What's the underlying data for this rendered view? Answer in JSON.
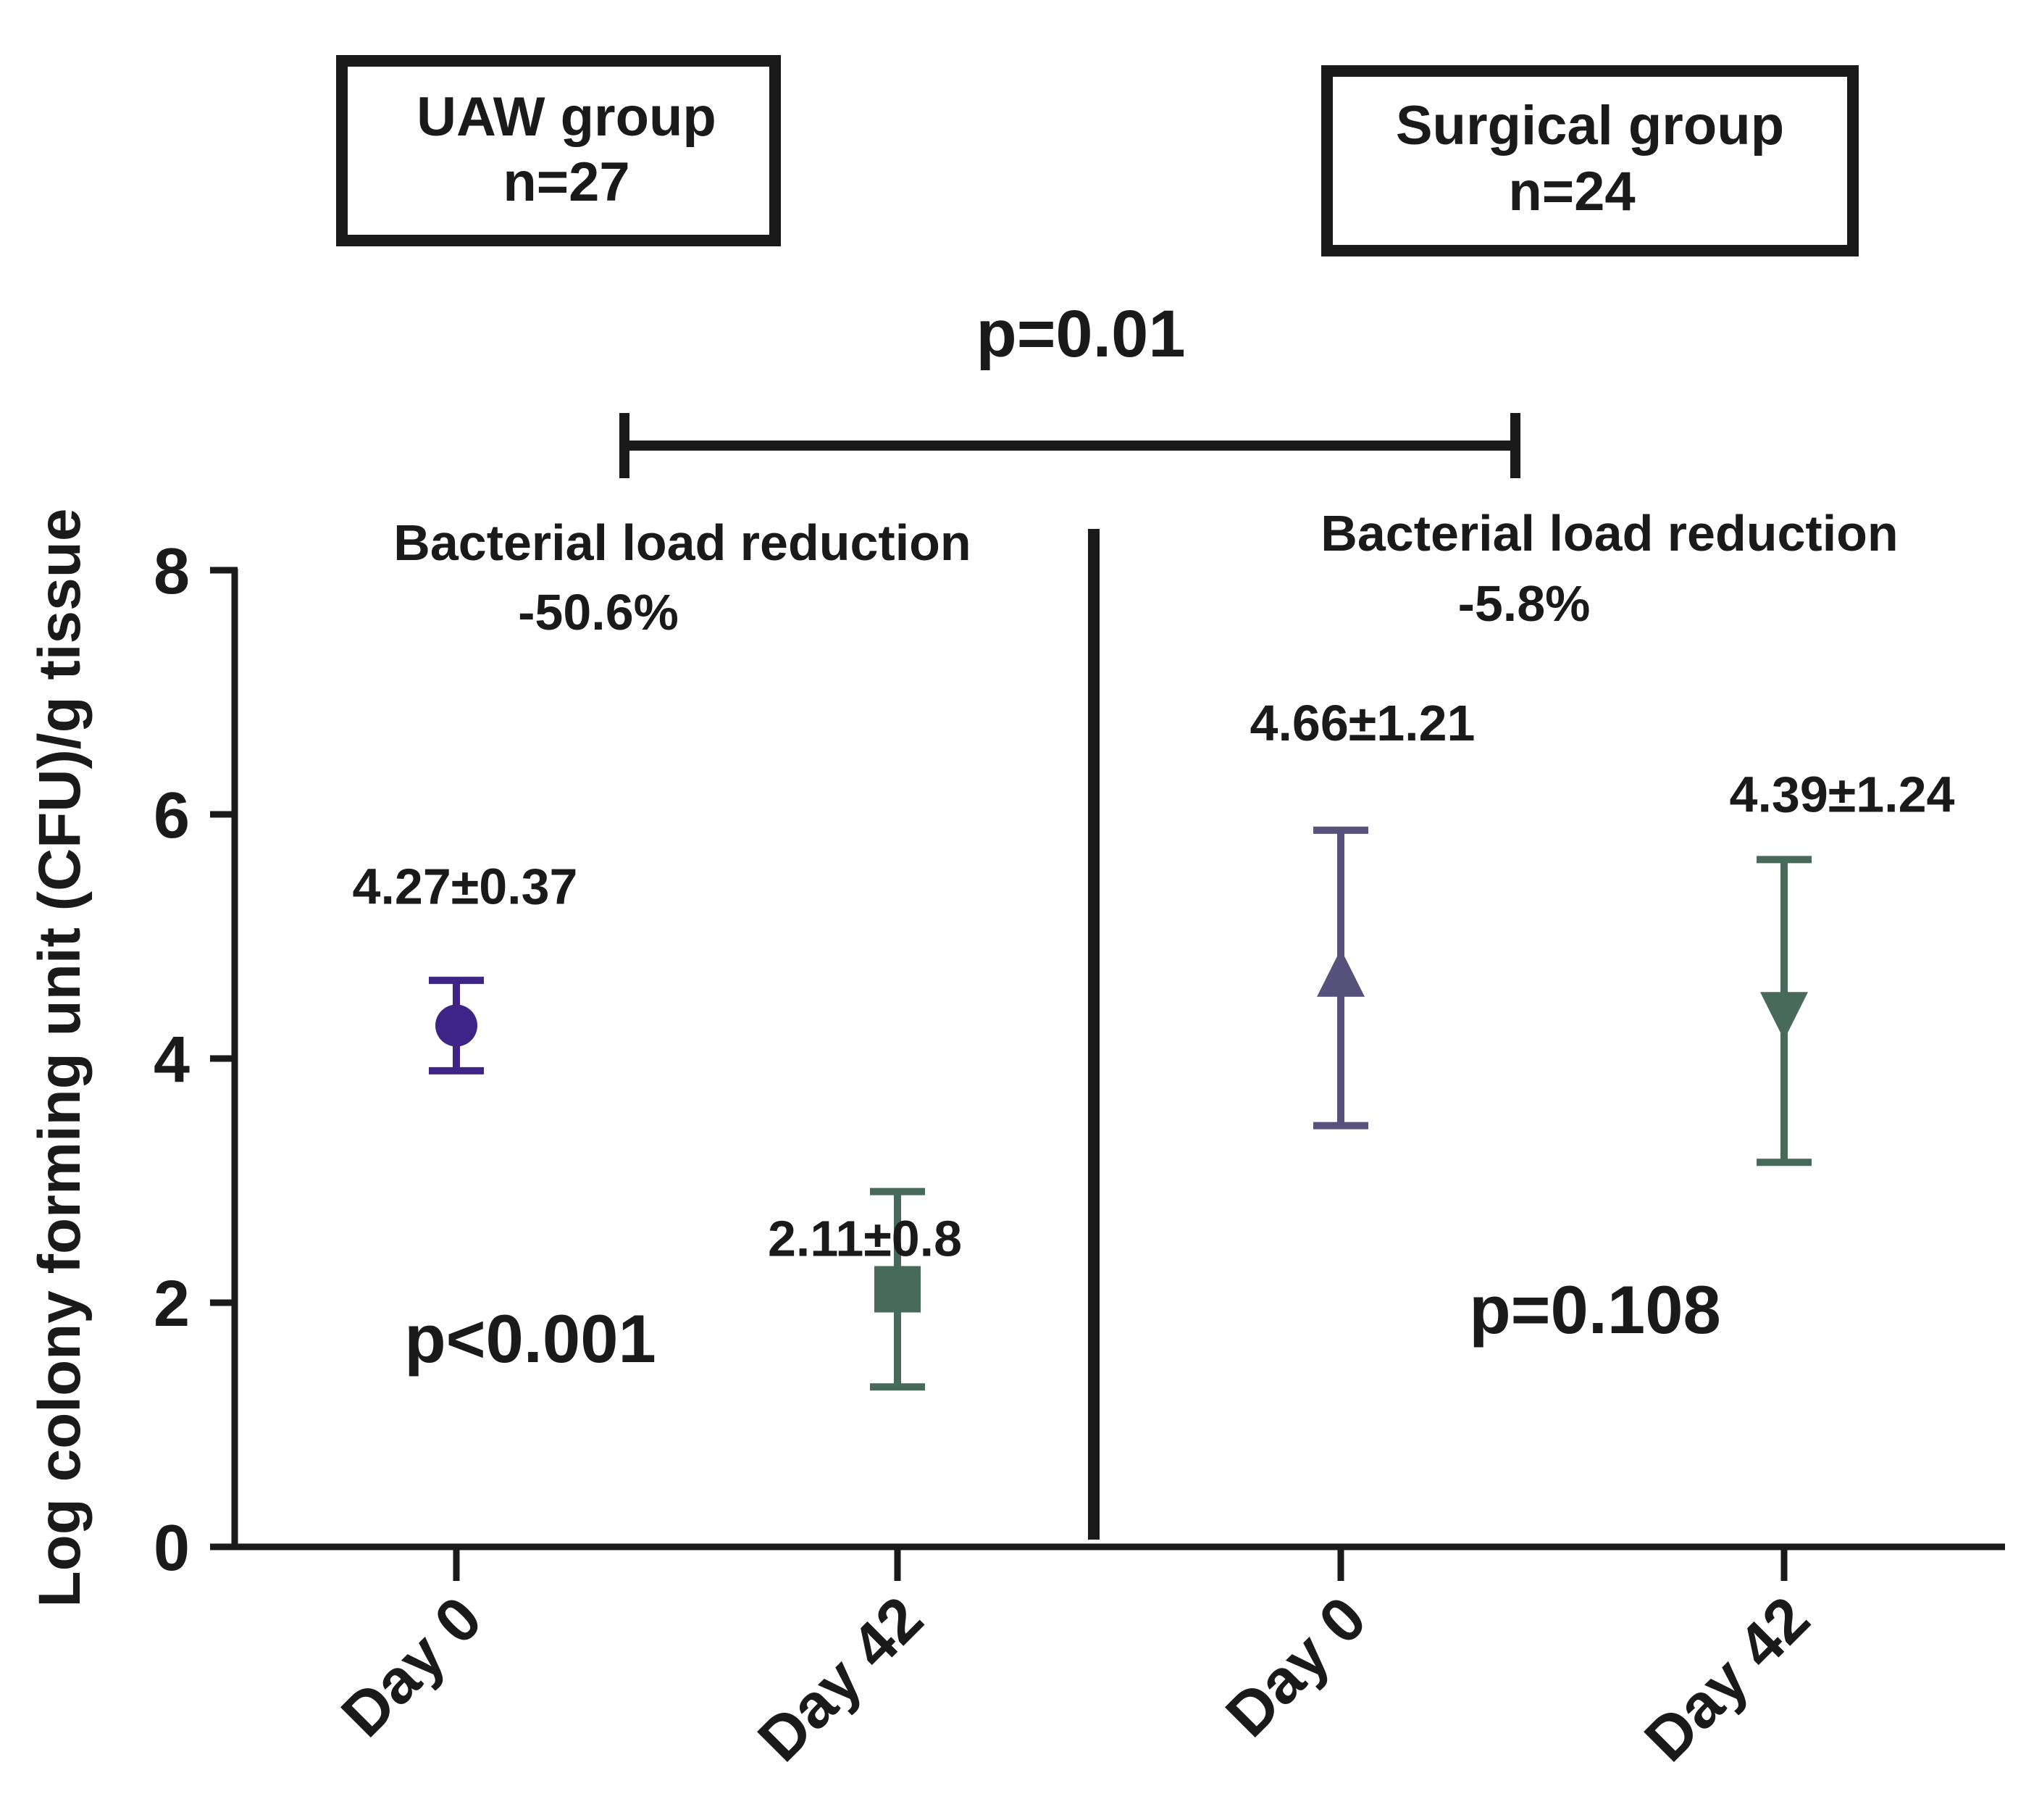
{
  "chart_data": {
    "type": "scatter",
    "ylabel": "Log colony forming unit (CFU)/g tissue",
    "ylim": [
      0,
      8
    ],
    "yticks": [
      0,
      2,
      4,
      6,
      8
    ],
    "categories": [
      "Day 0",
      "Day 42",
      "Day 0",
      "Day 42"
    ],
    "groups": [
      {
        "name": "UAW group",
        "n_label": "n=27",
        "reduction_label": "Bacterial load reduction",
        "reduction_value": "-50.6%",
        "within_p": "p<0.001",
        "points": [
          {
            "category": "Day 0",
            "mean": 4.27,
            "sd": 0.37,
            "label": "4.27±0.37",
            "marker": "circle",
            "color": "#3d2486"
          },
          {
            "category": "Day 42",
            "mean": 2.11,
            "sd": 0.8,
            "label": "2.11±0.8",
            "marker": "square",
            "color": "#476a5a"
          }
        ]
      },
      {
        "name": "Surgical group",
        "n_label": "n=24",
        "reduction_label": "Bacterial load reduction",
        "reduction_value": "-5.8%",
        "within_p": "p=0.108",
        "points": [
          {
            "category": "Day 0",
            "mean": 4.66,
            "sd": 1.21,
            "label": "4.66±1.21",
            "marker": "triangle-up",
            "color": "#56527c"
          },
          {
            "category": "Day 42",
            "mean": 4.39,
            "sd": 1.24,
            "label": "4.39±1.24",
            "marker": "triangle-down",
            "color": "#476a5a"
          }
        ]
      }
    ],
    "between_p": "p=0.01"
  }
}
